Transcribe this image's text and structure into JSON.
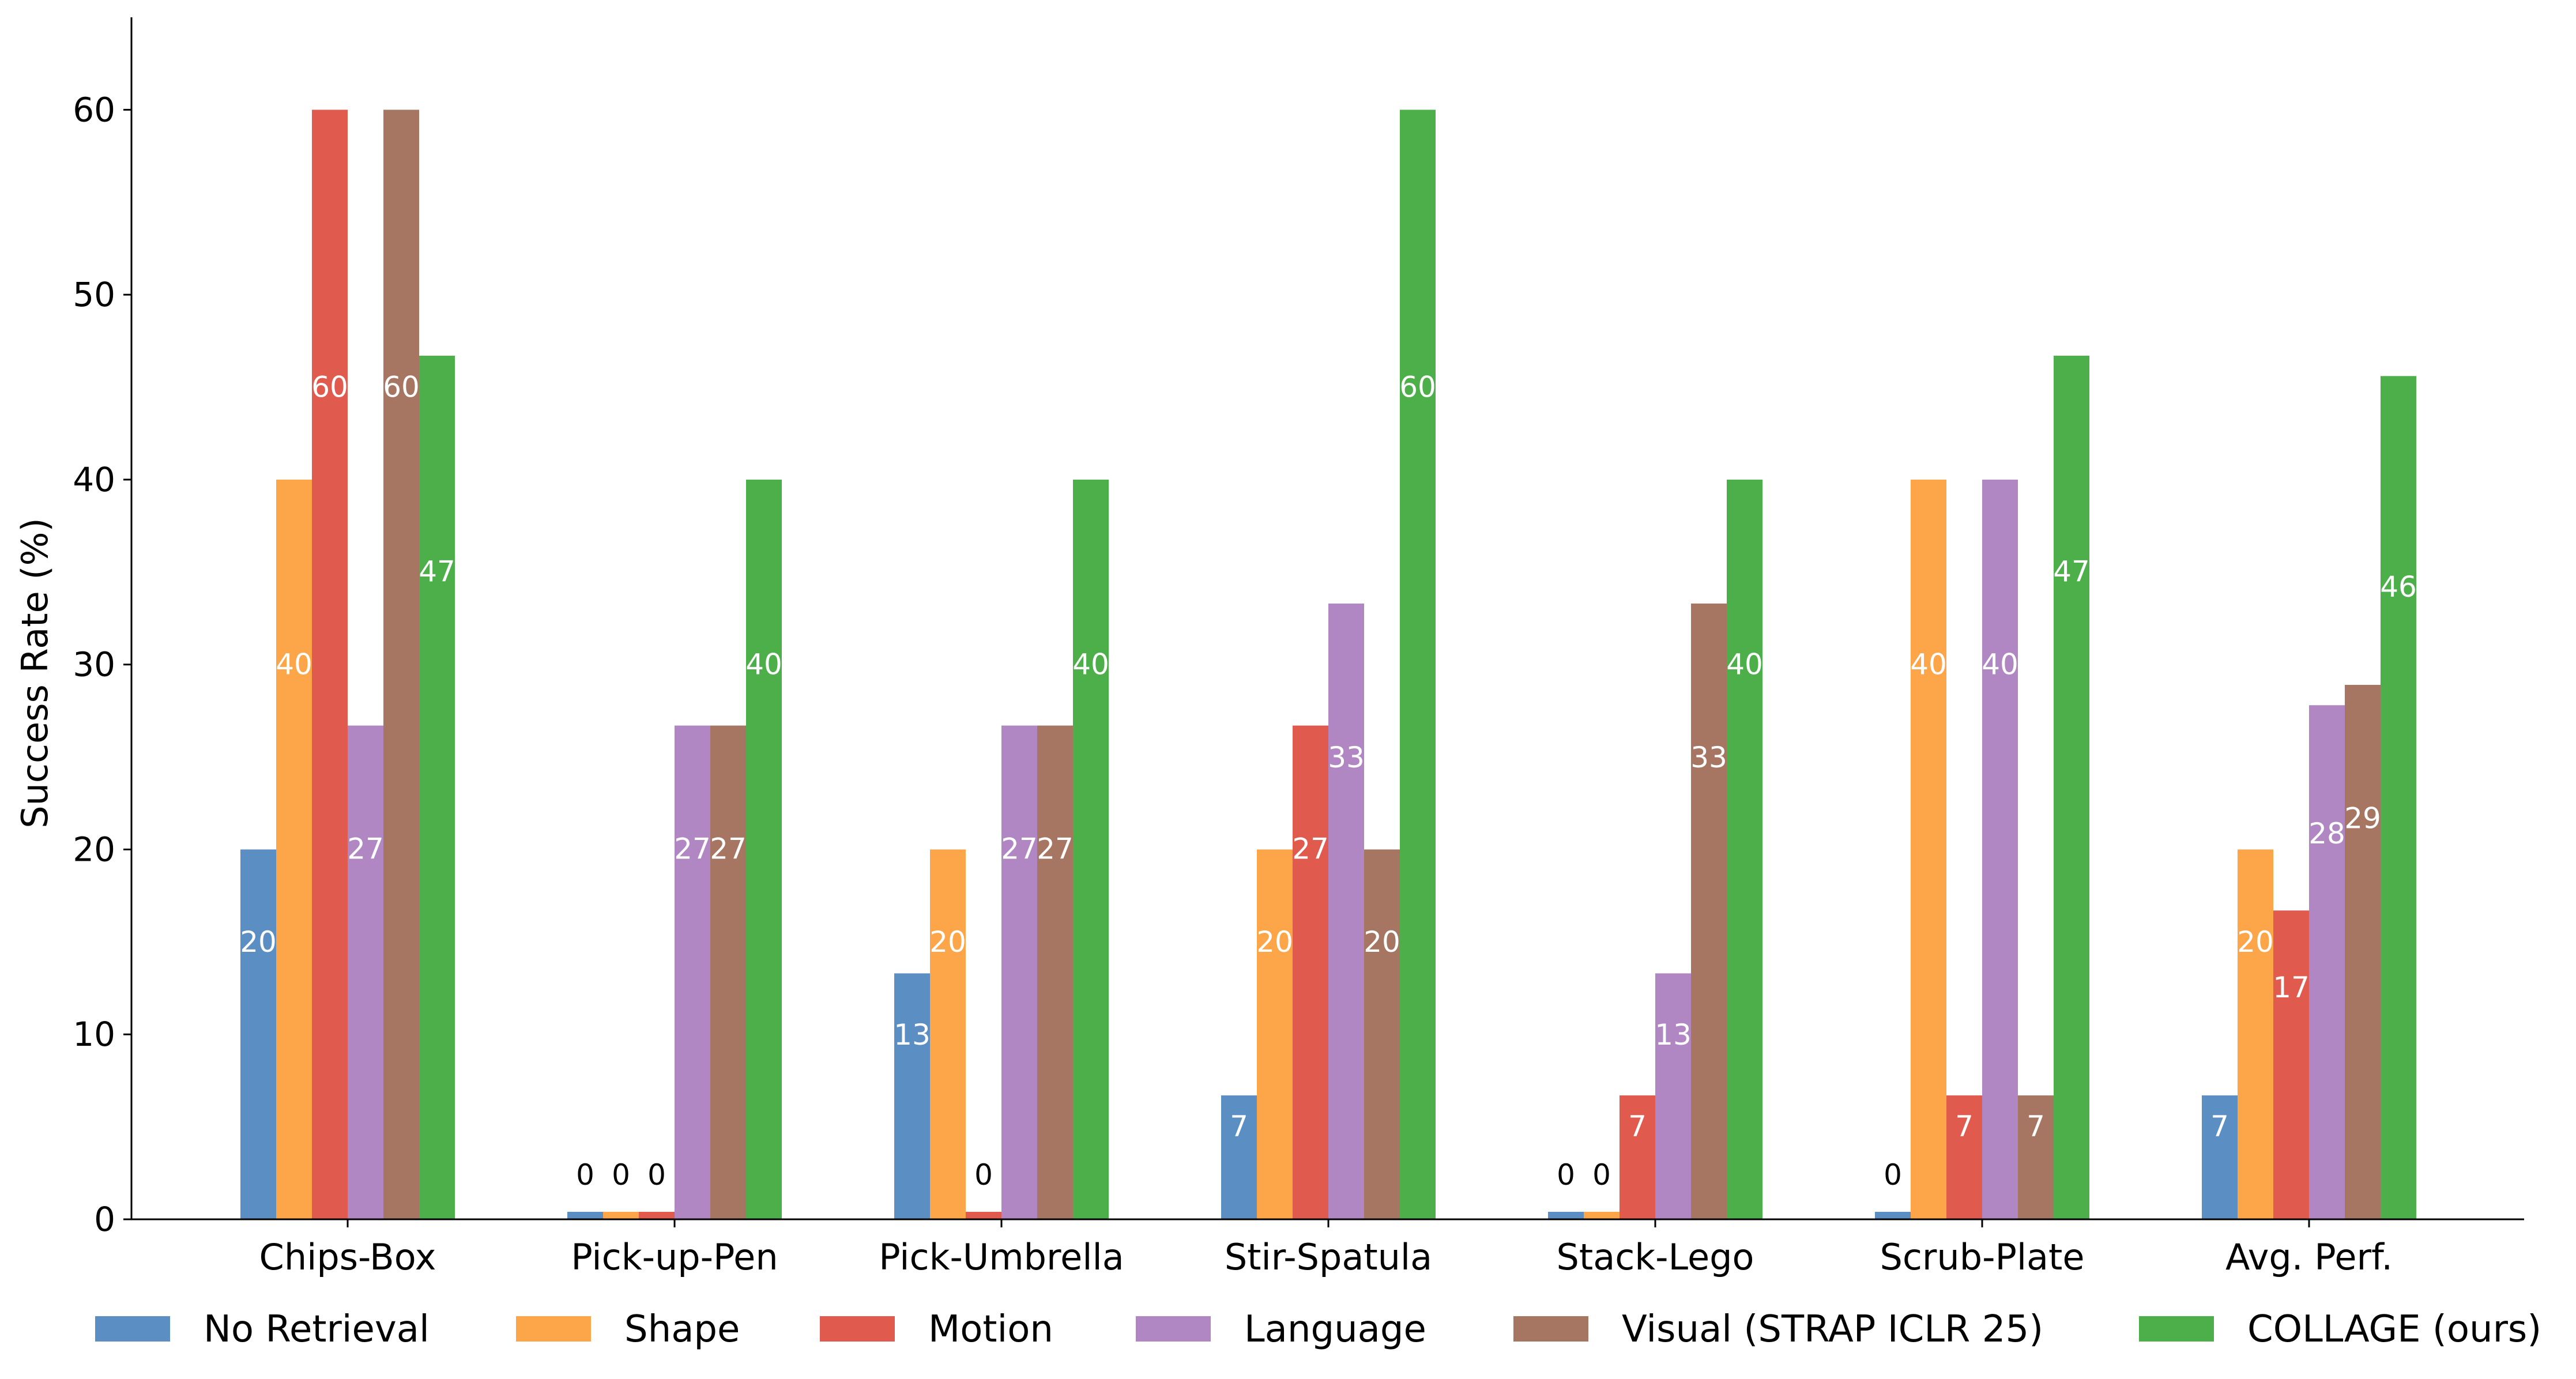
{
  "chart_data": {
    "type": "bar",
    "title": "",
    "xlabel": "",
    "ylabel": "Success Rate (%)",
    "ylim": [
      0,
      65
    ],
    "yticks": [
      0,
      10,
      20,
      30,
      40,
      50,
      60
    ],
    "grid": false,
    "legend_position": "bottom",
    "categories": [
      "Chips-Box",
      "Pick-up-Pen",
      "Pick-Umbrella",
      "Stir-Spatula",
      "Stack-Lego",
      "Scrub-Plate",
      "Avg. Perf."
    ],
    "series": [
      {
        "name": "No Retrieval",
        "color": "#5b8fc3",
        "values": [
          20,
          0,
          13.3,
          6.7,
          0,
          0,
          6.7
        ],
        "labels": [
          "20",
          "0",
          "13",
          "7",
          "0",
          "0",
          "7"
        ]
      },
      {
        "name": "Shape",
        "color": "#fda649",
        "values": [
          40,
          0,
          20,
          20,
          0,
          40,
          20
        ],
        "labels": [
          "40",
          "0",
          "20",
          "20",
          "0",
          "40",
          "20"
        ]
      },
      {
        "name": "Motion",
        "color": "#e05b4e",
        "values": [
          60,
          0,
          0,
          26.7,
          6.7,
          6.7,
          16.7
        ],
        "labels": [
          "60",
          "0",
          "0",
          "27",
          "7",
          "7",
          "17"
        ]
      },
      {
        "name": "Language",
        "color": "#b087c3",
        "values": [
          26.7,
          26.7,
          26.7,
          33.3,
          13.3,
          40,
          27.8
        ],
        "labels": [
          "27",
          "27",
          "27",
          "33",
          "13",
          "40",
          "28"
        ]
      },
      {
        "name": "Visual (STRAP ICLR 25)",
        "color": "#a67662",
        "values": [
          60,
          26.7,
          26.7,
          20,
          33.3,
          6.7,
          28.9
        ],
        "labels": [
          "60",
          "27",
          "27",
          "20",
          "33",
          "7",
          "29"
        ]
      },
      {
        "name": "COLLAGE (ours)",
        "color": "#4daf4a",
        "values": [
          46.7,
          40,
          40,
          60,
          40,
          46.7,
          45.6
        ],
        "labels": [
          "47",
          "40",
          "40",
          "60",
          "40",
          "47",
          "46"
        ]
      }
    ]
  }
}
